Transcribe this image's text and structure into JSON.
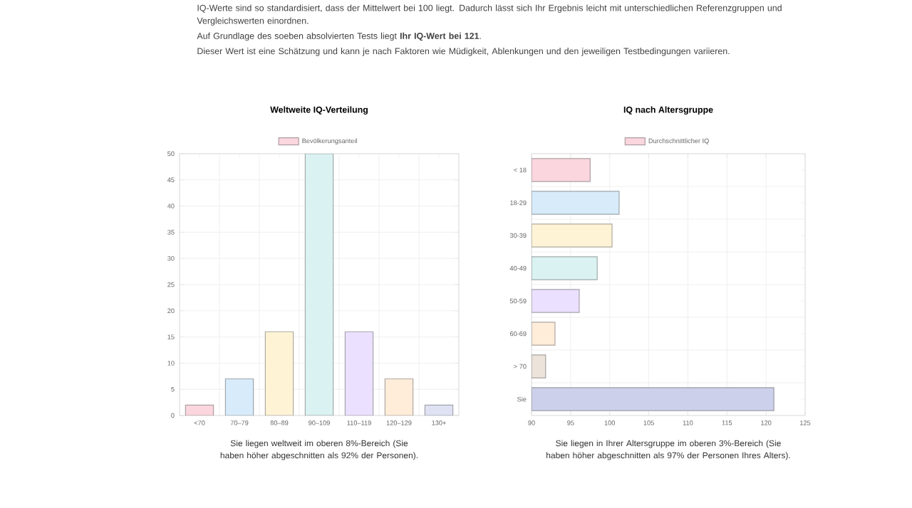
{
  "chart_data": [
    {
      "type": "other",
      "annotations": [
        "IQ-Werte sind so standardisiert, dass der Mittelwert bei 100 liegt. Dadurch lässt sich Ihr Ergebnis leicht mit unterschiedlichen Referenzgruppen und Vergleichswerten einordnen.",
        "Auf Grundlage des soeben absolvierten Tests liegt **Ihr IQ-Wert bei 121**.",
        "Dieser Wert ist eine Schätzung und kann je nach Faktoren wie Müdigkeit, Ablenkungen und den jeweiligen Testbedingungen variieren."
      ]
    },
    {
      "type": "bar",
      "title": "Weltweite IQ-Verteilung",
      "categories": [
        "<70",
        "70–79",
        "80–89",
        "90–109",
        "110–119",
        "120–129",
        "130+"
      ],
      "series": [
        {
          "name": "Bevölkerungsanteil",
          "colors": [
            "#fbd6de",
            "#d7ebfa",
            "#fff3d6",
            "#dbf2f2",
            "#ebe0ff",
            "#ffecd9",
            "#dfe2f3"
          ],
          "values": [
            2,
            7,
            16,
            50,
            16,
            7,
            2
          ]
        }
      ],
      "ylim": [
        0,
        50
      ],
      "yticks": [
        0,
        5,
        10,
        15,
        20,
        25,
        30,
        35,
        40,
        45,
        50
      ],
      "grid": true,
      "legend": "top",
      "annotations": [
        "Sie liegen weltweit im oberen 8%-Bereich (Sie haben höher abgeschnitten als 92% der Personen)."
      ]
    },
    {
      "type": "bar",
      "orientation": "horizontal",
      "title": "IQ nach Altersgruppe",
      "categories": [
        "< 18",
        "18-29",
        "30-39",
        "40-49",
        "50-59",
        "60-69",
        "> 70",
        "Sie"
      ],
      "series": [
        {
          "name": "Durchschnittlicher IQ",
          "colors": [
            "#fbd6de",
            "#d7ebfa",
            "#fff3d6",
            "#dbf2f2",
            "#ebe0ff",
            "#ffecd9",
            "#ece3da",
            "#cdd0ea"
          ],
          "values": [
            97.5,
            101.2,
            100.3,
            98.4,
            96.1,
            93,
            91.8,
            121
          ]
        }
      ],
      "xlim": [
        90,
        125
      ],
      "xticks": [
        90,
        95,
        100,
        105,
        110,
        115,
        120,
        125
      ],
      "grid": true,
      "legend": "top",
      "annotations": [
        "Sie liegen in Ihrer Altersgruppe im oberen 3%-Bereich (Sie haben höher abgeschnitten als 97% der Personen Ihres Alters)."
      ]
    }
  ]
}
